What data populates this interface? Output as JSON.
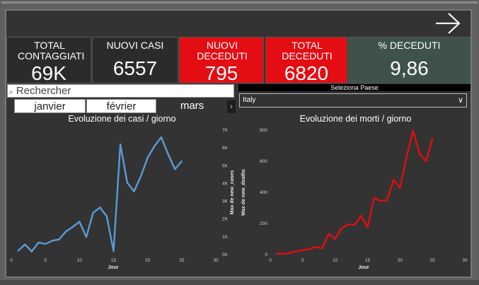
{
  "kpis": [
    {
      "label": "TOTAL CONTAGGIATI",
      "value": "69K",
      "color": "#2b2b2b"
    },
    {
      "label": "NUOVI CASI",
      "value": "6557",
      "color": "#2b2b2b"
    },
    {
      "label": "NUOVI DECEDUTI",
      "value": "795",
      "color": "#e30d13"
    },
    {
      "label": "TOTAL DECEDUTI",
      "value": "6820",
      "color": "#e30d13"
    },
    {
      "label": "% DECEDUTI",
      "value": "9,86",
      "color": "#3e524a"
    }
  ],
  "search": {
    "icon": "search-icon",
    "placeholder": "Rechercher"
  },
  "months": {
    "items": [
      "janvier",
      "février",
      "mars"
    ],
    "selected": "mars"
  },
  "country": {
    "header": "Seleziona Paese",
    "selected": "Italy"
  },
  "charts": [
    {
      "title": "Evoluzione dei casi / giorno",
      "color": "#5b9bd5"
    },
    {
      "title": "Evoluzione dei morti / giorno",
      "color": "#e30d13"
    }
  ],
  "chart_data": [
    {
      "type": "line",
      "title": "Evoluzione dei casi / giorno",
      "xlabel": "Jour",
      "ylabel": "Max de new_cases",
      "xlim": [
        0,
        30
      ],
      "ylim": [
        0,
        7000
      ],
      "xticks": [
        "0",
        "5",
        "10",
        "15",
        "20",
        "25",
        "30"
      ],
      "yticks": [
        "0K",
        "1K",
        "2K",
        "3K",
        "4K",
        "5K",
        "6K",
        "7K"
      ],
      "x": [
        1,
        2,
        3,
        4,
        5,
        6,
        7,
        8,
        9,
        10,
        11,
        12,
        13,
        14,
        15,
        16,
        17,
        18,
        19,
        20,
        21,
        22,
        23,
        24,
        25
      ],
      "series": [
        {
          "values": [
            220,
            570,
            180,
            680,
            600,
            780,
            850,
            1300,
            1550,
            1850,
            990,
            2350,
            2650,
            2150,
            190,
            6200,
            4050,
            3550,
            4400,
            5450,
            6100,
            6600,
            5650,
            4800,
            5250
          ]
        }
      ],
      "grid": false,
      "legend": "none"
    },
    {
      "type": "line",
      "title": "Evoluzione dei morti / giorno",
      "xlabel": "Jour",
      "ylabel": "Max de new_deaths",
      "xlim": [
        0,
        30
      ],
      "ylim": [
        0,
        800
      ],
      "xticks": [
        "0",
        "5",
        "10",
        "15",
        "20",
        "25",
        "30"
      ],
      "yticks": [
        "0",
        "200",
        "400",
        "600",
        "800"
      ],
      "x": [
        1,
        2,
        3,
        4,
        5,
        6,
        7,
        8,
        9,
        10,
        11,
        12,
        13,
        14,
        15,
        16,
        17,
        18,
        19,
        20,
        21,
        22,
        23,
        24,
        25
      ],
      "series": [
        {
          "values": [
            7,
            5,
            10,
            22,
            28,
            35,
            50,
            40,
            135,
            100,
            170,
            195,
            190,
            250,
            175,
            365,
            345,
            350,
            480,
            430,
            625,
            795,
            650,
            600,
            745
          ]
        }
      ],
      "grid": false,
      "legend": "none"
    }
  ]
}
